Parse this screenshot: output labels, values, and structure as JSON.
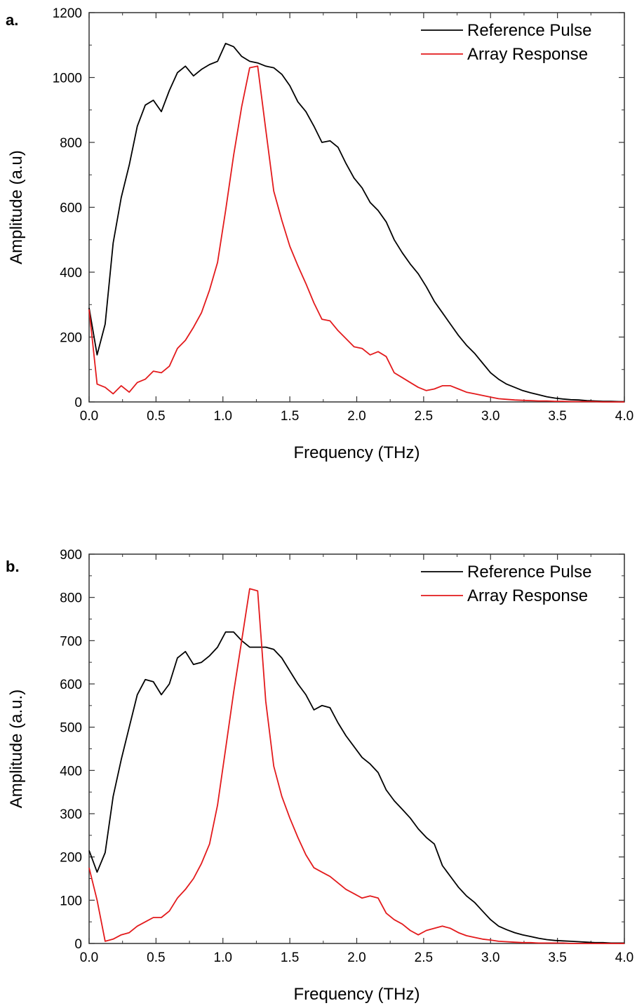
{
  "chart_data": [
    {
      "panel_label": "a.",
      "type": "line",
      "xlabel": "Frequency (THz)",
      "ylabel": "Amplitude (a.u)",
      "xlim": [
        0,
        4.0
      ],
      "ylim": [
        0,
        1200
      ],
      "xticks": [
        "0.0",
        "0.5",
        "1.0",
        "1.5",
        "2.0",
        "2.5",
        "3.0",
        "3.5",
        "4.0"
      ],
      "yticks": [
        "0",
        "200",
        "400",
        "600",
        "800",
        "1000",
        "1200"
      ],
      "grid": false,
      "legend_position": "top-right",
      "series": [
        {
          "name": "Reference Pulse",
          "color": "#000000",
          "x": [
            0.0,
            0.06,
            0.12,
            0.18,
            0.24,
            0.3,
            0.36,
            0.42,
            0.48,
            0.54,
            0.6,
            0.66,
            0.72,
            0.78,
            0.84,
            0.9,
            0.96,
            1.02,
            1.08,
            1.14,
            1.2,
            1.26,
            1.32,
            1.38,
            1.44,
            1.5,
            1.56,
            1.62,
            1.68,
            1.74,
            1.8,
            1.86,
            1.92,
            1.98,
            2.04,
            2.1,
            2.16,
            2.22,
            2.28,
            2.34,
            2.4,
            2.46,
            2.52,
            2.58,
            2.64,
            2.7,
            2.76,
            2.82,
            2.88,
            2.94,
            3.0,
            3.06,
            3.12,
            3.18,
            3.24,
            3.3,
            3.36,
            3.42,
            3.48,
            3.54,
            3.6,
            3.66,
            3.72,
            3.78,
            3.84,
            3.9,
            3.96,
            4.0
          ],
          "y": [
            290,
            145,
            240,
            490,
            630,
            730,
            850,
            915,
            930,
            895,
            960,
            1015,
            1035,
            1005,
            1025,
            1040,
            1050,
            1105,
            1095,
            1065,
            1050,
            1045,
            1035,
            1030,
            1010,
            975,
            925,
            895,
            850,
            800,
            805,
            785,
            735,
            690,
            660,
            615,
            590,
            555,
            500,
            460,
            425,
            395,
            355,
            310,
            275,
            240,
            205,
            175,
            150,
            120,
            90,
            70,
            55,
            45,
            35,
            28,
            22,
            16,
            12,
            9,
            7,
            6,
            4,
            3,
            2,
            2,
            1,
            1
          ]
        },
        {
          "name": "Array Response",
          "color": "#e31a1c",
          "x": [
            0.0,
            0.06,
            0.12,
            0.18,
            0.24,
            0.3,
            0.36,
            0.42,
            0.48,
            0.54,
            0.6,
            0.66,
            0.72,
            0.78,
            0.84,
            0.9,
            0.96,
            1.02,
            1.08,
            1.14,
            1.2,
            1.26,
            1.32,
            1.38,
            1.44,
            1.5,
            1.56,
            1.62,
            1.68,
            1.74,
            1.8,
            1.86,
            1.92,
            1.98,
            2.04,
            2.1,
            2.16,
            2.22,
            2.28,
            2.34,
            2.4,
            2.46,
            2.52,
            2.58,
            2.64,
            2.7,
            2.76,
            2.82,
            2.88,
            2.94,
            3.0,
            3.06,
            3.12,
            3.18,
            3.24,
            3.3,
            3.36,
            3.42,
            3.48,
            3.54,
            3.6,
            3.66,
            3.72,
            3.78,
            3.84,
            3.9,
            3.96,
            4.0
          ],
          "y": [
            285,
            55,
            45,
            25,
            50,
            30,
            60,
            70,
            95,
            90,
            110,
            165,
            190,
            230,
            275,
            345,
            430,
            590,
            760,
            910,
            1030,
            1035,
            840,
            650,
            560,
            480,
            420,
            365,
            305,
            255,
            250,
            220,
            195,
            170,
            165,
            145,
            155,
            140,
            90,
            75,
            60,
            45,
            35,
            40,
            50,
            50,
            40,
            30,
            25,
            20,
            15,
            10,
            8,
            6,
            5,
            4,
            3,
            3,
            2,
            2,
            1,
            1,
            1,
            1,
            0,
            0,
            0,
            0
          ]
        }
      ]
    },
    {
      "panel_label": "b.",
      "type": "line",
      "xlabel": "Frequency (THz)",
      "ylabel": "Amplitude (a.u.)",
      "xlim": [
        0,
        4.0
      ],
      "ylim": [
        0,
        900
      ],
      "xticks": [
        "0.0",
        "0.5",
        "1.0",
        "1.5",
        "2.0",
        "2.5",
        "3.0",
        "3.5",
        "4.0"
      ],
      "yticks": [
        "0",
        "100",
        "200",
        "300",
        "400",
        "500",
        "600",
        "700",
        "800",
        "900"
      ],
      "grid": false,
      "legend_position": "top-right",
      "series": [
        {
          "name": "Reference Pulse",
          "color": "#000000",
          "x": [
            0.0,
            0.06,
            0.12,
            0.18,
            0.24,
            0.3,
            0.36,
            0.42,
            0.48,
            0.54,
            0.6,
            0.66,
            0.72,
            0.78,
            0.84,
            0.9,
            0.96,
            1.02,
            1.08,
            1.14,
            1.2,
            1.26,
            1.32,
            1.38,
            1.44,
            1.5,
            1.56,
            1.62,
            1.68,
            1.74,
            1.8,
            1.86,
            1.92,
            1.98,
            2.04,
            2.1,
            2.16,
            2.22,
            2.28,
            2.34,
            2.4,
            2.46,
            2.52,
            2.58,
            2.64,
            2.7,
            2.76,
            2.82,
            2.88,
            2.94,
            3.0,
            3.06,
            3.12,
            3.18,
            3.24,
            3.3,
            3.36,
            3.42,
            3.48,
            3.54,
            3.6,
            3.66,
            3.72,
            3.78,
            3.84,
            3.9,
            3.96,
            4.0
          ],
          "y": [
            215,
            165,
            210,
            340,
            425,
            500,
            575,
            610,
            605,
            575,
            600,
            660,
            675,
            645,
            650,
            665,
            685,
            720,
            720,
            700,
            685,
            685,
            685,
            680,
            660,
            630,
            600,
            575,
            540,
            550,
            545,
            510,
            480,
            455,
            430,
            415,
            395,
            355,
            330,
            310,
            290,
            265,
            245,
            230,
            180,
            155,
            130,
            110,
            95,
            75,
            55,
            40,
            32,
            25,
            20,
            16,
            12,
            9,
            7,
            6,
            5,
            4,
            3,
            2,
            2,
            1,
            1,
            1
          ]
        },
        {
          "name": "Array Response",
          "color": "#e31a1c",
          "x": [
            0.0,
            0.06,
            0.12,
            0.18,
            0.24,
            0.3,
            0.36,
            0.42,
            0.48,
            0.54,
            0.6,
            0.66,
            0.72,
            0.78,
            0.84,
            0.9,
            0.96,
            1.02,
            1.08,
            1.14,
            1.2,
            1.26,
            1.32,
            1.38,
            1.44,
            1.5,
            1.56,
            1.62,
            1.68,
            1.74,
            1.8,
            1.86,
            1.92,
            1.98,
            2.04,
            2.1,
            2.16,
            2.22,
            2.28,
            2.34,
            2.4,
            2.46,
            2.52,
            2.58,
            2.64,
            2.7,
            2.76,
            2.82,
            2.88,
            2.94,
            3.0,
            3.06,
            3.12,
            3.18,
            3.24,
            3.3,
            3.36,
            3.42,
            3.48,
            3.54,
            3.6,
            3.66,
            3.72,
            3.78,
            3.84,
            3.9,
            3.96,
            4.0
          ],
          "y": [
            175,
            100,
            5,
            10,
            20,
            25,
            40,
            50,
            60,
            60,
            75,
            105,
            125,
            150,
            185,
            230,
            320,
            450,
            580,
            700,
            820,
            815,
            560,
            410,
            340,
            290,
            245,
            205,
            175,
            165,
            155,
            140,
            125,
            115,
            105,
            110,
            105,
            70,
            55,
            45,
            30,
            20,
            30,
            35,
            40,
            35,
            25,
            18,
            14,
            10,
            8,
            5,
            4,
            3,
            2,
            2,
            1,
            1,
            1,
            1,
            0,
            0,
            0,
            0,
            0,
            0,
            0,
            0
          ]
        }
      ]
    }
  ]
}
